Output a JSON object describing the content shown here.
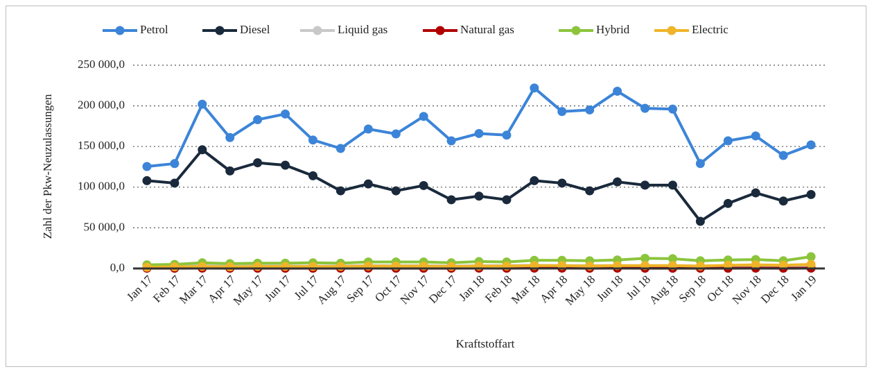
{
  "chart_data": {
    "type": "line",
    "y_label": "Zahl der Pkw-Neuzulassungen",
    "x_label": "Kraftstoffart",
    "categories": [
      "Jan 17",
      "Feb 17",
      "Mar 17",
      "Apr 17",
      "May 17",
      "Jun 17",
      "Jul 17",
      "Aug 17",
      "Sep 17",
      "Oct 17",
      "Nov 17",
      "Dec 17",
      "Jan 18",
      "Feb 18",
      "Mar 18",
      "Apr 18",
      "May 18",
      "Jun 18",
      "Jul 18",
      "Aug 18",
      "Sep 18",
      "Oct 18",
      "Nov 18",
      "Dec 18",
      "Jan 19"
    ],
    "ylim": [
      0,
      250000
    ],
    "yticks": [
      {
        "value": 0,
        "label": "0,0"
      },
      {
        "value": 50000,
        "label": "50 000,0"
      },
      {
        "value": 100000,
        "label": "100 000,0"
      },
      {
        "value": 150000,
        "label": "150 000,0"
      },
      {
        "value": 200000,
        "label": "200 000,0"
      },
      {
        "value": 250000,
        "label": "250 000,0"
      }
    ],
    "grid": true,
    "legend": "top",
    "series": [
      {
        "name": "Petrol",
        "color": "#3c84d8",
        "values": [
          125400,
          129000,
          202000,
          161000,
          183000,
          190000,
          158000,
          147600,
          171500,
          165500,
          187000,
          157000,
          166000,
          164000,
          222000,
          193000,
          195000,
          218000,
          197000,
          196000,
          129000,
          157000,
          163000,
          139000,
          152000
        ]
      },
      {
        "name": "Diesel",
        "color": "#1a2a3c",
        "values": [
          108000,
          105000,
          146000,
          120000,
          130000,
          127000,
          114000,
          95500,
          104000,
          95500,
          102000,
          84500,
          89000,
          84500,
          108000,
          105000,
          95500,
          106500,
          102500,
          102500,
          58000,
          80000,
          93000,
          83000,
          91000
        ]
      },
      {
        "name": "Liquid gas",
        "color": "#c8c8c8",
        "values": [
          3000,
          3000,
          3500,
          3000,
          3000,
          3000,
          3000,
          3000,
          3500,
          3500,
          3500,
          3000,
          3500,
          3500,
          4000,
          3500,
          3500,
          3500,
          3500,
          3500,
          3000,
          3500,
          3500,
          3000,
          3500
        ]
      },
      {
        "name": "Natural gas",
        "color": "#b00000",
        "values": [
          300,
          300,
          400,
          300,
          300,
          300,
          300,
          300,
          400,
          300,
          300,
          300,
          400,
          300,
          400,
          400,
          300,
          400,
          300,
          300,
          300,
          300,
          400,
          300,
          400
        ]
      },
      {
        "name": "Hybrid",
        "color": "#8cc43c",
        "values": [
          4500,
          5000,
          7000,
          6000,
          6500,
          6500,
          7000,
          6500,
          8000,
          8000,
          8000,
          7000,
          8500,
          8000,
          10000,
          10000,
          9500,
          10500,
          12500,
          12000,
          9500,
          10500,
          11000,
          9500,
          14500
        ]
      },
      {
        "name": "Electric",
        "color": "#f0b428",
        "values": [
          1500,
          2000,
          2500,
          2000,
          2500,
          2500,
          2500,
          2500,
          3000,
          3000,
          3000,
          2500,
          3000,
          3000,
          3500,
          3500,
          3000,
          3500,
          3500,
          3500,
          3000,
          4000,
          4500,
          4000,
          5000
        ]
      }
    ]
  }
}
